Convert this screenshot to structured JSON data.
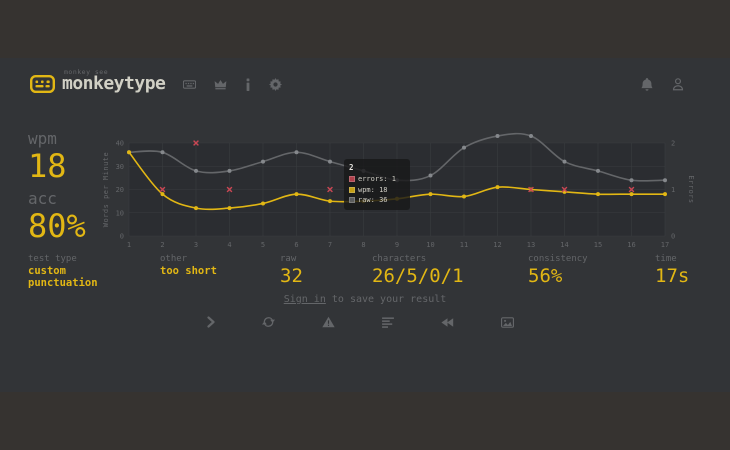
{
  "header": {
    "slogan": "monkey see",
    "brand": "monkeytype",
    "nav_icons": [
      "keyboard",
      "leaderboards-crown",
      "about-info",
      "settings-gear"
    ],
    "user_icons": [
      "notifications-bell",
      "account-user"
    ],
    "accent_color": "#e2b714",
    "text_color": "#d1d0c5",
    "sub_color": "#646669"
  },
  "result": {
    "wpm": {
      "label": "wpm",
      "value": "18"
    },
    "acc": {
      "label": "acc",
      "value": "80%"
    },
    "groups": {
      "test_type": {
        "label": "test type",
        "value": "custom punctuation"
      },
      "other": {
        "label": "other",
        "value": "too short"
      },
      "raw": {
        "label": "raw",
        "value": "32"
      },
      "characters": {
        "label": "characters",
        "value": "26/5/0/1"
      },
      "consistency": {
        "label": "consistency",
        "value": "56%"
      },
      "time": {
        "label": "time",
        "value": "17s"
      }
    },
    "signin": {
      "link": "Sign in",
      "rest": " to save your result"
    }
  },
  "actions": [
    "next-test",
    "repeat-test",
    "report",
    "practice-words",
    "watch-replay",
    "copy-screenshot"
  ],
  "chart_data": {
    "type": "line",
    "x": [
      1,
      2,
      3,
      4,
      5,
      6,
      7,
      8,
      9,
      10,
      11,
      12,
      13,
      14,
      15,
      16,
      17
    ],
    "series": [
      {
        "name": "wpm",
        "color": "#e2b714",
        "dot": "#e2b714",
        "values": [
          36,
          18,
          12,
          12,
          14,
          18,
          15,
          15,
          16,
          18,
          17,
          21,
          20,
          19,
          18,
          18,
          18
        ]
      },
      {
        "name": "raw",
        "color": "#646669",
        "dot": "#85888c",
        "values": [
          36,
          36,
          28,
          28,
          32,
          36,
          32,
          28,
          24,
          26,
          38,
          43,
          43,
          32,
          28,
          24,
          24
        ]
      },
      {
        "name": "errors",
        "color": "#ca4754",
        "style": "cross",
        "axis": "right",
        "values": [
          0,
          1,
          2,
          1,
          0,
          0,
          1,
          0,
          0,
          0,
          0,
          0,
          1,
          1,
          0,
          1,
          0
        ]
      }
    ],
    "ylabel_left": "Words per Minute",
    "ylabel_right": "Errors",
    "ylim_left": [
      0,
      40
    ],
    "yticks_left": [
      0,
      10,
      20,
      30,
      40
    ],
    "ylim_right": [
      0,
      2
    ],
    "yticks_right": [
      0,
      1,
      2
    ],
    "grid": true,
    "plot_bg": "#2b2d31",
    "grid_color": "#3a3c40",
    "tooltip": {
      "title": "2",
      "rows": [
        {
          "text": "errors: 1",
          "color": "#ca4754"
        },
        {
          "text": "wpm: 18",
          "color": "#e2b714"
        },
        {
          "text": "raw: 36",
          "color": "#646669"
        }
      ]
    }
  }
}
